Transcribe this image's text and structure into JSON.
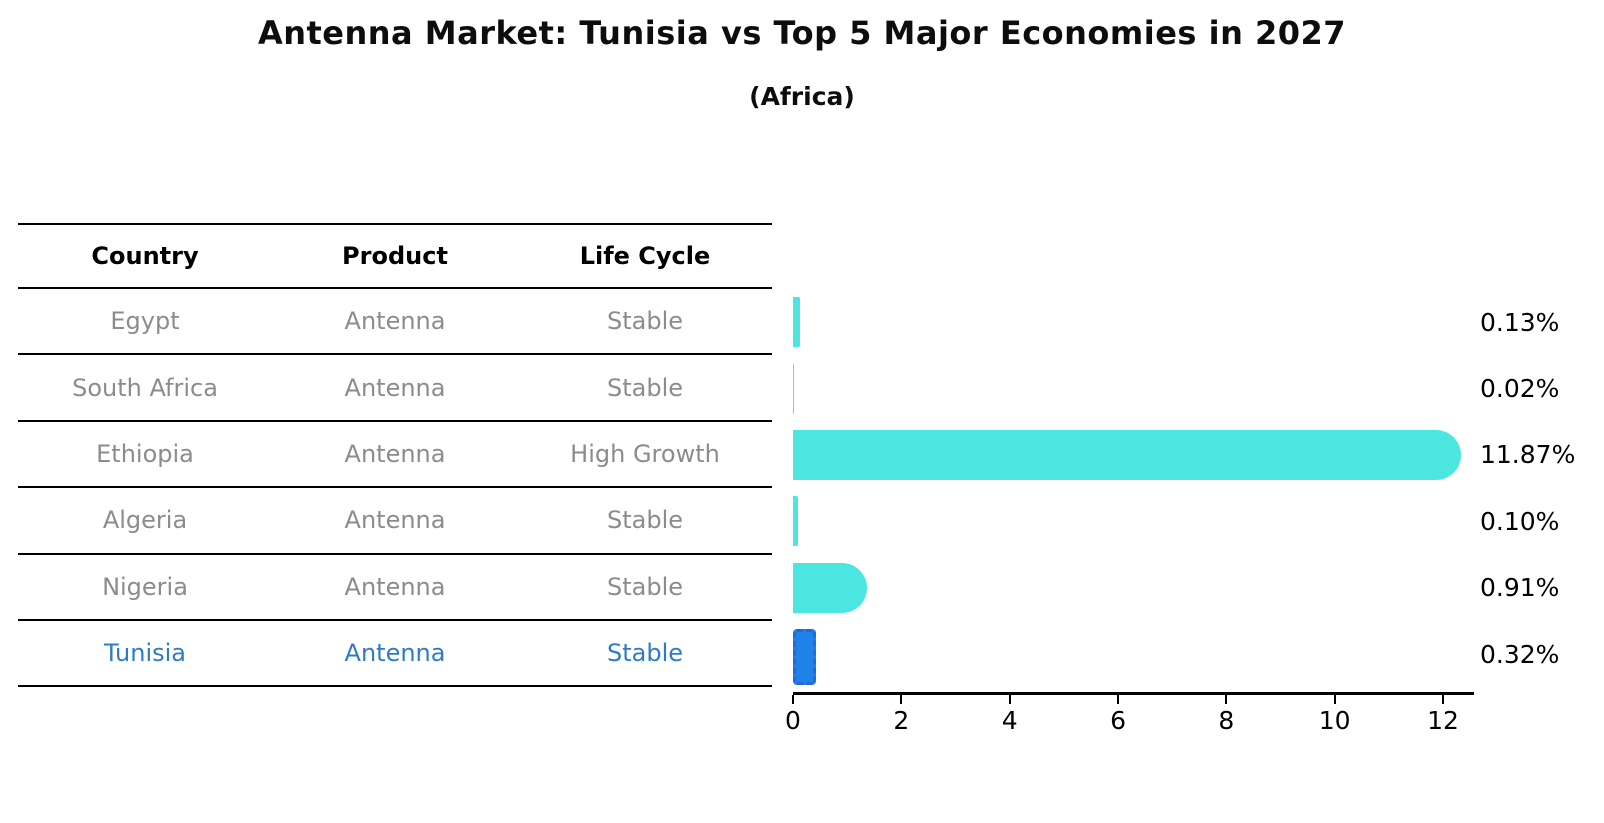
{
  "title": "Antenna Market: Tunisia vs Top 5 Major Economies in 2027",
  "subtitle": "(Africa)",
  "table": {
    "columns": [
      "Country",
      "Product",
      "Life Cycle"
    ],
    "rows": [
      {
        "country": "Egypt",
        "product": "Antenna",
        "life_cycle": "Stable",
        "highlight": false
      },
      {
        "country": "South Africa",
        "product": "Antenna",
        "life_cycle": "Stable",
        "highlight": false
      },
      {
        "country": "Ethiopia",
        "product": "Antenna",
        "life_cycle": "High Growth",
        "highlight": false
      },
      {
        "country": "Algeria",
        "product": "Antenna",
        "life_cycle": "Stable",
        "highlight": false
      },
      {
        "country": "Nigeria",
        "product": "Antenna",
        "life_cycle": "Stable",
        "highlight": false
      },
      {
        "country": "Tunisia",
        "product": "Antenna",
        "life_cycle": "Stable",
        "highlight": true
      }
    ]
  },
  "chart_data": {
    "type": "bar",
    "orientation": "horizontal",
    "title": "Antenna Market: Tunisia vs Top 5 Major Economies in 2027",
    "subtitle": "(Africa)",
    "categories": [
      "Egypt",
      "South Africa",
      "Ethiopia",
      "Algeria",
      "Nigeria",
      "Tunisia"
    ],
    "values": [
      0.13,
      0.02,
      11.87,
      0.1,
      0.91,
      0.32
    ],
    "value_labels": [
      "0.13%",
      "0.02%",
      "11.87%",
      "0.10%",
      "0.91%",
      "0.32%"
    ],
    "xlabel": "",
    "ylabel": "",
    "xlim": [
      0,
      12.55
    ],
    "x_ticks": [
      0,
      2,
      4,
      6,
      8,
      10,
      12
    ],
    "grid": false,
    "legend": false,
    "highlight_category": "Tunisia",
    "colors": {
      "bar": "#4ce6e0",
      "highlight_bar": "#1f82e8",
      "highlight_edge": "#2a66d8",
      "highlight_text": "#2e7cc4",
      "table_text": "#8c8c8c",
      "axis": "#000000"
    }
  }
}
